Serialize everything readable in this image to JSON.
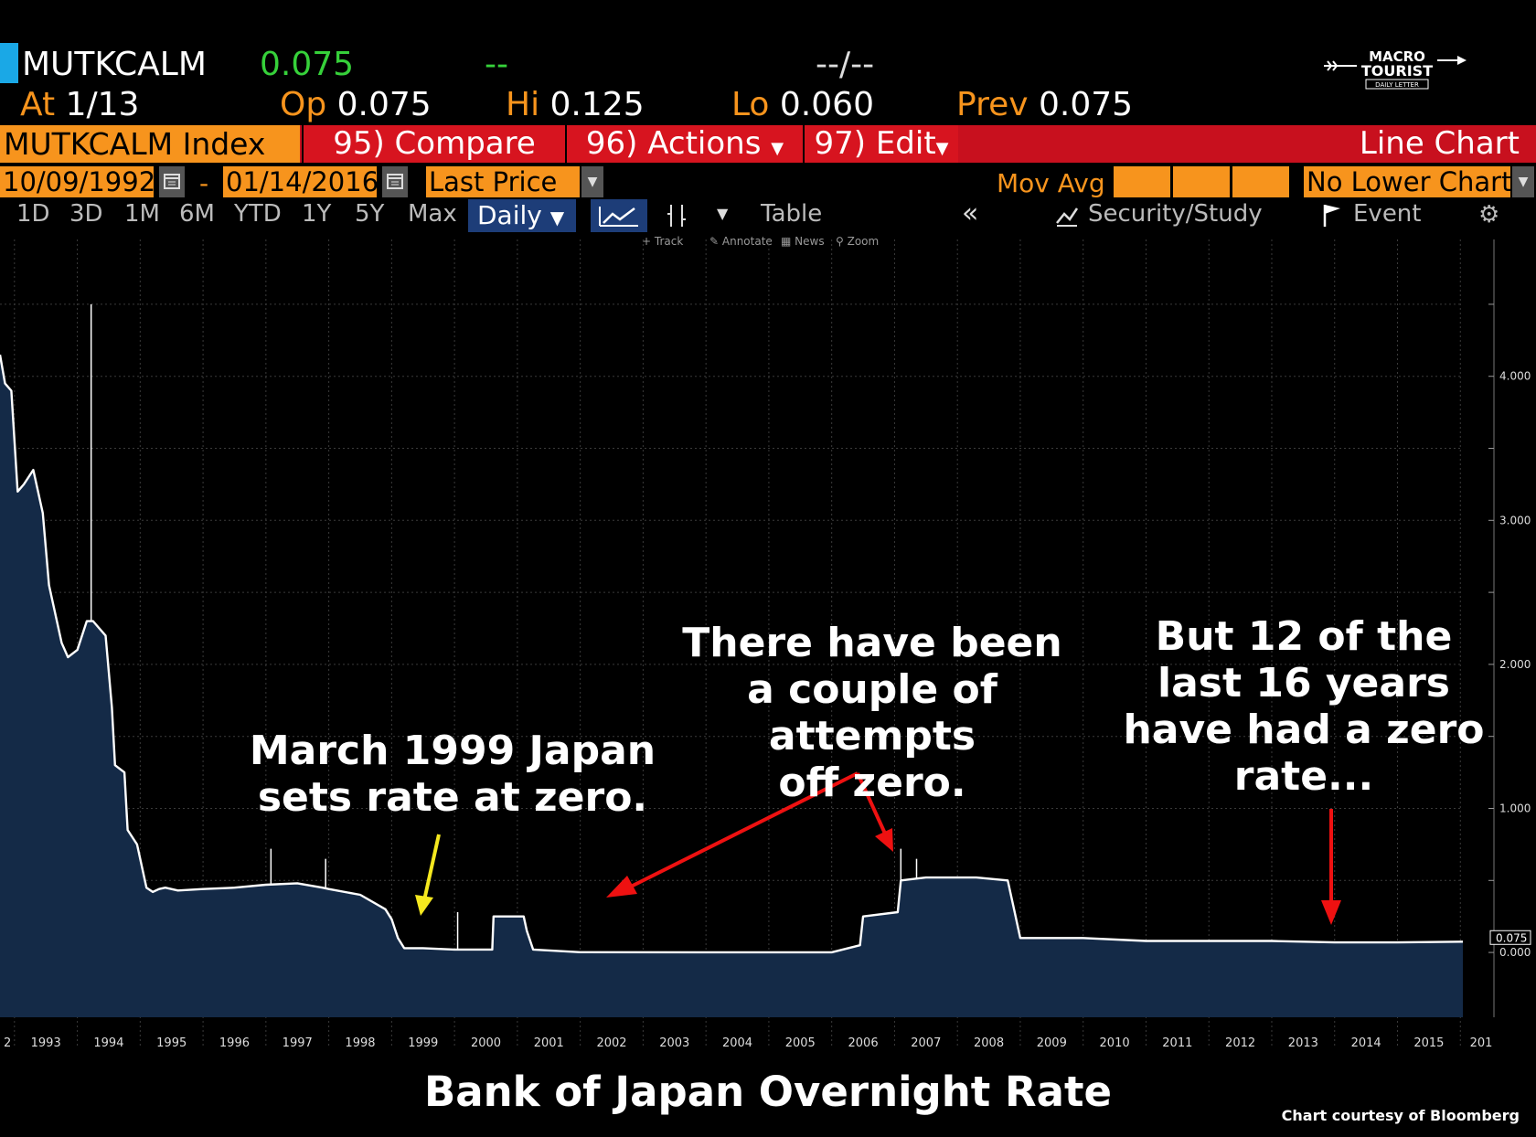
{
  "header": {
    "ticker": "MUTKCALM",
    "last": "0.075",
    "change": "--",
    "time": "--/--",
    "at_label": "At",
    "at_value": "1/13",
    "open_label": "Op",
    "open_value": "0.075",
    "high_label": "Hi",
    "high_value": "0.125",
    "low_label": "Lo",
    "low_value": "0.060",
    "prev_label": "Prev",
    "prev_value": "0.075"
  },
  "logo": {
    "line1": "MACRO",
    "line2": "TOURIST",
    "line3": "DAILY LETTER"
  },
  "toolbar1": {
    "security": "MUTKCALM Index",
    "compare": "95) Compare",
    "actions": "96) Actions",
    "edit": "97) Edit",
    "chart_type": "Line Chart"
  },
  "toolbar2": {
    "start_date": "10/09/1992",
    "dash": "-",
    "end_date": "01/14/2016",
    "field": "Last Price",
    "mov_avg": "Mov Avg",
    "lower_chart": "No Lower Chart"
  },
  "toolbar3": {
    "periods": [
      "1D",
      "3D",
      "1M",
      "6M",
      "YTD",
      "1Y",
      "5Y",
      "Max"
    ],
    "frequency": "Daily",
    "table": "Table",
    "security_study": "Security/Study",
    "event": "Event",
    "tools": [
      "Track",
      "Annotate",
      "News",
      "Zoom"
    ]
  },
  "chart_data": {
    "type": "area",
    "title": "Bank of Japan Overnight Rate",
    "x_tick_labels": [
      "2",
      "1993",
      "1994",
      "1995",
      "1996",
      "1997",
      "1998",
      "1999",
      "2000",
      "2001",
      "2002",
      "2003",
      "2004",
      "2005",
      "2006",
      "2007",
      "2008",
      "2009",
      "2010",
      "2011",
      "2012",
      "2013",
      "2014",
      "2015",
      "201"
    ],
    "y_tick_labels": [
      "4.000",
      "3.000",
      "2.000",
      "1.000",
      "0.000"
    ],
    "ylim": [
      -0.45,
      4.95
    ],
    "xlim": [
      1992.77,
      2016.04
    ],
    "last_value_label": "0.075",
    "series": [
      {
        "x": [
          1992.77,
          1992.85,
          1992.95,
          1993.05,
          1993.15,
          1993.3,
          1993.45,
          1993.55,
          1993.65,
          1993.75,
          1993.85,
          1994.0,
          1994.15,
          1994.25,
          1994.35,
          1994.45,
          1994.55,
          1994.6,
          1994.75,
          1994.8,
          1994.95,
          1995.1,
          1995.2,
          1995.3,
          1995.4,
          1995.6,
          1996.0,
          1996.5,
          1997.0,
          1997.5,
          1997.9,
          1998.0,
          1998.5,
          1998.9,
          1999.0,
          1999.1,
          1999.2,
          1999.5,
          2000.0,
          2000.6,
          2000.62,
          2001.1,
          2001.15,
          2001.25,
          2002.0,
          2004.0,
          2006.0,
          2006.45,
          2006.5,
          2007.05,
          2007.1,
          2007.5,
          2008.0,
          2008.3,
          2008.8,
          2008.9,
          2009.0,
          2010.0,
          2011.0,
          2012.0,
          2013.0,
          2014.0,
          2015.0,
          2016.04
        ],
        "y": [
          4.15,
          3.95,
          3.9,
          3.2,
          3.25,
          3.35,
          3.05,
          2.55,
          2.35,
          2.15,
          2.05,
          2.1,
          2.3,
          2.3,
          2.25,
          2.2,
          1.7,
          1.3,
          1.25,
          0.85,
          0.75,
          0.45,
          0.42,
          0.44,
          0.45,
          0.43,
          0.44,
          0.45,
          0.47,
          0.48,
          0.45,
          0.44,
          0.4,
          0.3,
          0.23,
          0.1,
          0.03,
          0.03,
          0.02,
          0.02,
          0.25,
          0.25,
          0.15,
          0.02,
          0.002,
          0.001,
          0.001,
          0.05,
          0.25,
          0.28,
          0.5,
          0.52,
          0.52,
          0.52,
          0.5,
          0.3,
          0.1,
          0.1,
          0.08,
          0.08,
          0.08,
          0.07,
          0.07,
          0.075
        ],
        "spikes": [
          {
            "x": 1994.22,
            "y": 4.5
          },
          {
            "x": 1997.08,
            "y": 0.72
          },
          {
            "x": 1997.95,
            "y": 0.65
          },
          {
            "x": 2000.05,
            "y": 0.28
          },
          {
            "x": 2007.1,
            "y": 0.72
          },
          {
            "x": 2007.35,
            "y": 0.65
          }
        ]
      }
    ]
  },
  "annotations": {
    "a1": [
      "March 1999 Japan",
      "sets rate at zero."
    ],
    "a2": [
      "There have been",
      "a couple of attempts",
      "off zero."
    ],
    "a3": [
      "But 12 of the",
      "last 16 years",
      "have had a zero",
      "rate..."
    ]
  },
  "footer": {
    "title": "Bank of Japan Overnight Rate",
    "credit": "Chart courtesy of Bloomberg"
  },
  "colors": {
    "orange": "#f7941d",
    "red": "#d7141f",
    "area": "#142a47",
    "arrow_red": "#ee1111",
    "arrow_yellow": "#f5e81f",
    "green": "#36d13a"
  }
}
